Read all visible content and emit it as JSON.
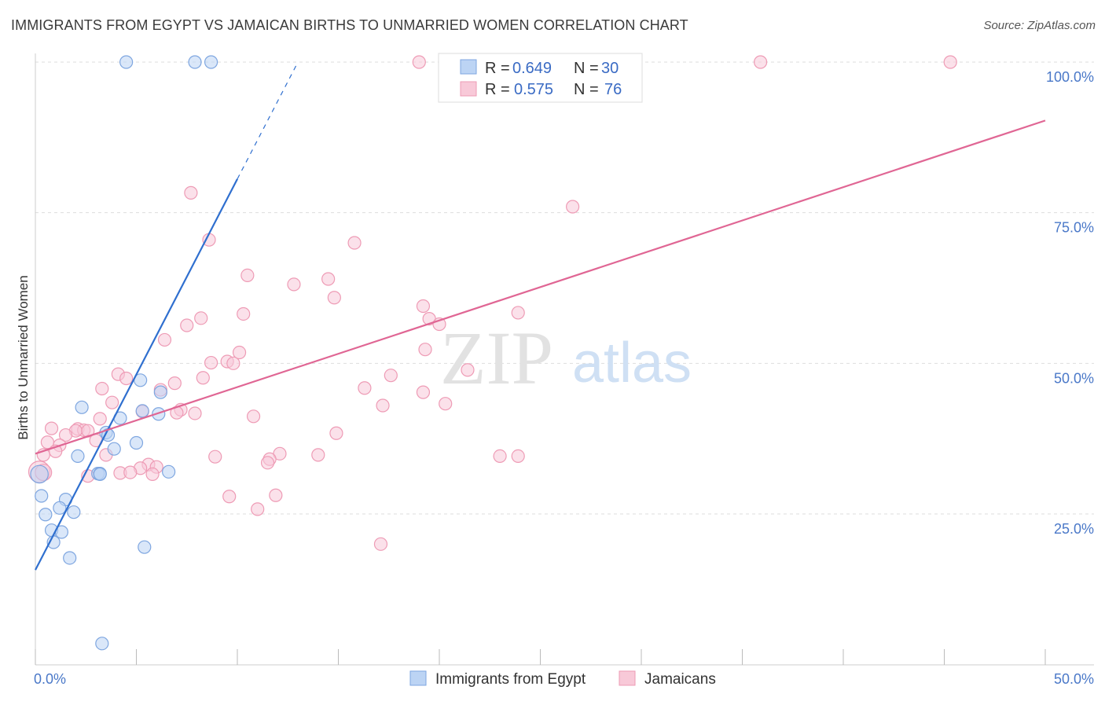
{
  "header": {
    "title": "IMMIGRANTS FROM EGYPT VS JAMAICAN BIRTHS TO UNMARRIED WOMEN CORRELATION CHART",
    "source": "Source: ZipAtlas.com"
  },
  "watermark": {
    "zip": "ZIP",
    "atlas": "atlas"
  },
  "colors": {
    "egypt_fill": "#bcd4f4",
    "egypt_stroke": "#7ea6e0",
    "egypt_line": "#2f6fcf",
    "jam_fill": "#f8c9d8",
    "jam_stroke": "#ee9bb5",
    "jam_line": "#e06694",
    "tick_text": "#4a78c8",
    "grid": "#dddddd"
  },
  "legend": {
    "r_label": "R =",
    "n_label": "N =",
    "rows": [
      {
        "r": "0.649",
        "n": "30"
      },
      {
        "r": "0.575",
        "n": "76"
      }
    ]
  },
  "chart_data": {
    "type": "scatter",
    "title": "IMMIGRANTS FROM EGYPT VS JAMAICAN BIRTHS TO UNMARRIED WOMEN CORRELATION CHART",
    "xlabel": "",
    "ylabel": "Births to Unmarried Women",
    "xlim": [
      0,
      50
    ],
    "ylim": [
      0,
      100
    ],
    "x_tick_labels": [
      {
        "value": 0,
        "label": "0.0%"
      },
      {
        "value": 50,
        "label": "50.0%"
      }
    ],
    "x_minor_ticks": [
      0,
      5,
      10,
      15,
      20,
      25,
      30,
      35,
      40,
      45,
      50
    ],
    "y_ticks": [
      {
        "value": 25,
        "label": "25.0%"
      },
      {
        "value": 50,
        "label": "50.0%"
      },
      {
        "value": 75,
        "label": "75.0%"
      },
      {
        "value": 100,
        "label": "100.0%"
      }
    ],
    "grid": true,
    "legend_position": "top-center",
    "series": [
      {
        "name": "Immigrants from Egypt",
        "r": 0.649,
        "n": 30,
        "trend": {
          "x0": 0,
          "y0": 15.7,
          "x1": 10.0,
          "y1": 80.6,
          "dash_x1": 13.0,
          "dash_y1": 100
        },
        "points": [
          [
            4.5,
            100,
            1
          ],
          [
            7.9,
            100,
            1
          ],
          [
            8.7,
            100,
            1
          ],
          [
            2.3,
            42.7,
            1
          ],
          [
            5.2,
            47.2,
            1
          ],
          [
            6.2,
            45.2,
            1
          ],
          [
            5.3,
            42.1,
            1
          ],
          [
            6.1,
            41.6,
            1
          ],
          [
            4.2,
            40.9,
            1
          ],
          [
            3.5,
            38.5,
            1
          ],
          [
            3.6,
            38.1,
            1
          ],
          [
            5.0,
            36.8,
            1
          ],
          [
            3.9,
            35.8,
            1
          ],
          [
            2.1,
            34.6,
            1
          ],
          [
            3.1,
            31.7,
            1
          ],
          [
            3.2,
            31.7,
            1
          ],
          [
            3.2,
            31.6,
            1
          ],
          [
            6.6,
            32.0,
            1
          ],
          [
            0.2,
            31.6,
            1.4
          ],
          [
            0.3,
            28.0,
            1
          ],
          [
            1.5,
            27.4,
            1
          ],
          [
            1.2,
            26.0,
            1
          ],
          [
            1.9,
            25.3,
            1
          ],
          [
            0.5,
            24.9,
            1
          ],
          [
            0.8,
            22.3,
            1
          ],
          [
            1.3,
            22.0,
            1
          ],
          [
            0.9,
            20.3,
            1
          ],
          [
            5.4,
            19.5,
            1
          ],
          [
            1.7,
            17.7,
            1
          ],
          [
            3.3,
            3.5,
            1
          ]
        ]
      },
      {
        "name": "Jamaicans",
        "r": 0.575,
        "n": 76,
        "trend": {
          "x0": 0,
          "y0": 35.0,
          "x1": 50.0,
          "y1": 90.3
        },
        "points": [
          [
            19.0,
            100,
            1
          ],
          [
            35.9,
            100,
            1
          ],
          [
            45.3,
            100,
            1
          ],
          [
            7.7,
            78.3,
            1
          ],
          [
            26.6,
            76.0,
            1
          ],
          [
            8.6,
            70.5,
            1
          ],
          [
            15.8,
            70.0,
            1
          ],
          [
            10.5,
            64.6,
            1
          ],
          [
            12.8,
            63.1,
            1
          ],
          [
            14.5,
            64.0,
            1
          ],
          [
            14.8,
            60.9,
            1
          ],
          [
            19.2,
            59.5,
            1
          ],
          [
            10.3,
            58.2,
            1
          ],
          [
            8.2,
            57.5,
            1
          ],
          [
            19.5,
            57.4,
            1
          ],
          [
            23.9,
            58.4,
            1
          ],
          [
            20.0,
            56.5,
            1
          ],
          [
            7.5,
            56.3,
            1
          ],
          [
            6.4,
            53.9,
            1
          ],
          [
            19.3,
            52.3,
            1
          ],
          [
            10.1,
            51.8,
            1
          ],
          [
            9.5,
            50.3,
            1
          ],
          [
            8.7,
            50.1,
            1
          ],
          [
            9.8,
            50.0,
            1
          ],
          [
            17.6,
            48.0,
            1
          ],
          [
            21.4,
            48.9,
            1
          ],
          [
            4.1,
            48.2,
            1
          ],
          [
            4.5,
            47.5,
            1
          ],
          [
            8.3,
            47.6,
            1
          ],
          [
            6.9,
            46.7,
            1
          ],
          [
            3.3,
            45.8,
            1
          ],
          [
            16.3,
            45.9,
            1
          ],
          [
            6.2,
            45.6,
            1
          ],
          [
            19.2,
            45.2,
            1
          ],
          [
            3.8,
            43.5,
            1
          ],
          [
            17.2,
            43.0,
            1
          ],
          [
            20.3,
            43.3,
            1
          ],
          [
            5.3,
            42.0,
            1
          ],
          [
            7.2,
            42.3,
            1
          ],
          [
            7.9,
            41.7,
            1
          ],
          [
            7.0,
            41.8,
            1
          ],
          [
            10.8,
            41.2,
            1
          ],
          [
            3.2,
            40.8,
            1
          ],
          [
            0.8,
            39.2,
            1
          ],
          [
            2.1,
            39.1,
            1
          ],
          [
            2.4,
            38.9,
            1
          ],
          [
            2.0,
            38.8,
            1
          ],
          [
            2.6,
            38.8,
            1
          ],
          [
            1.5,
            38.1,
            1
          ],
          [
            14.9,
            38.4,
            1
          ],
          [
            3.0,
            37.2,
            1
          ],
          [
            0.6,
            36.9,
            1
          ],
          [
            1.2,
            36.4,
            1
          ],
          [
            1.0,
            35.4,
            1
          ],
          [
            0.4,
            34.8,
            1
          ],
          [
            3.5,
            34.8,
            1
          ],
          [
            12.1,
            35.0,
            1
          ],
          [
            14.0,
            34.8,
            1
          ],
          [
            8.9,
            34.5,
            1
          ],
          [
            11.6,
            34.1,
            1
          ],
          [
            23.0,
            34.6,
            1
          ],
          [
            23.9,
            34.6,
            1
          ],
          [
            11.5,
            33.5,
            1
          ],
          [
            5.6,
            33.2,
            1
          ],
          [
            6.0,
            32.8,
            1
          ],
          [
            5.2,
            32.6,
            1
          ],
          [
            4.2,
            31.8,
            1
          ],
          [
            4.7,
            31.9,
            1
          ],
          [
            5.8,
            31.6,
            1
          ],
          [
            2.6,
            31.3,
            1
          ],
          [
            0.2,
            32.0,
            1.7
          ],
          [
            9.6,
            27.9,
            1
          ],
          [
            11.9,
            28.1,
            1
          ],
          [
            11.0,
            25.8,
            1
          ],
          [
            17.1,
            20.0,
            1
          ],
          [
            0.4,
            31.9,
            1.3
          ]
        ]
      }
    ]
  }
}
